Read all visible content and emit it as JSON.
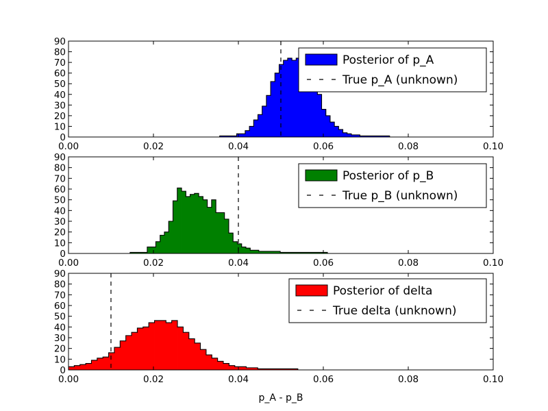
{
  "chart_data": [
    {
      "type": "histogram",
      "xlim": [
        0.0,
        0.1
      ],
      "ylim": [
        0,
        90
      ],
      "x_ticks": [
        "0.00",
        "0.02",
        "0.04",
        "0.06",
        "0.08",
        "0.10"
      ],
      "y_ticks": [
        "0",
        "10",
        "20",
        "30",
        "40",
        "50",
        "60",
        "70",
        "80",
        "90"
      ],
      "xlabel": "",
      "grid": false,
      "legend_position": "top-right",
      "series": [
        {
          "name": "Posterior of p_A",
          "color": "#0000ff",
          "bins_start": 0.0356,
          "bin_width": 0.001,
          "values": [
            1,
            1,
            1,
            1,
            3,
            3,
            6,
            10,
            16,
            21,
            29,
            39,
            52,
            60,
            68,
            72,
            74,
            72,
            74,
            66,
            63,
            59,
            51,
            40,
            26,
            20,
            14,
            10,
            7,
            4,
            3,
            2,
            2,
            1,
            1,
            1,
            1,
            1,
            1,
            1
          ]
        },
        {
          "name": "True p_A (unknown)",
          "style": "dashed",
          "x": 0.05
        }
      ]
    },
    {
      "type": "histogram",
      "xlim": [
        0.0,
        0.1
      ],
      "ylim": [
        0,
        90
      ],
      "x_ticks": [
        "0.00",
        "0.02",
        "0.04",
        "0.06",
        "0.08",
        "0.10"
      ],
      "y_ticks": [
        "0",
        "10",
        "20",
        "30",
        "40",
        "50",
        "60",
        "70",
        "80",
        "90"
      ],
      "xlabel": "",
      "grid": false,
      "legend_position": "top-right",
      "series": [
        {
          "name": "Posterior of p_B",
          "color": "#008000",
          "bins_start": 0.0145,
          "bin_width": 0.00101,
          "values": [
            1,
            1,
            1,
            1,
            6,
            6,
            11,
            17,
            20,
            30,
            49,
            61,
            58,
            53,
            55,
            56,
            53,
            50,
            43,
            50,
            38,
            38,
            32,
            19,
            11,
            9,
            6,
            5,
            3,
            3,
            2,
            2,
            2,
            2,
            2,
            1,
            1,
            1,
            1,
            1,
            1,
            1,
            1,
            1,
            1,
            1
          ]
        },
        {
          "name": "True p_B (unknown)",
          "style": "dashed",
          "x": 0.04
        }
      ]
    },
    {
      "type": "histogram",
      "xlim": [
        0.0,
        0.1
      ],
      "ylim": [
        0,
        90
      ],
      "x_ticks": [
        "0.00",
        "0.02",
        "0.04",
        "0.06",
        "0.08",
        "0.10"
      ],
      "y_ticks": [
        "0",
        "10",
        "20",
        "30",
        "40",
        "50",
        "60",
        "70",
        "80",
        "90"
      ],
      "xlabel": "p_A - p_B",
      "grid": false,
      "legend_position": "top-right",
      "series": [
        {
          "name": "Posterior of delta",
          "color": "#ff0000",
          "bins_start": 0.0,
          "bin_width": 0.00135,
          "values": [
            3,
            4,
            5,
            6,
            9,
            11,
            12,
            16,
            21,
            27,
            32,
            35,
            39,
            40,
            44,
            46,
            46,
            44,
            46,
            40,
            35,
            29,
            25,
            19,
            14,
            11,
            8,
            6,
            4,
            3,
            3,
            2,
            2,
            1,
            1,
            1,
            1,
            1,
            1,
            1
          ]
        },
        {
          "name": "True delta (unknown)",
          "style": "dashed",
          "x": 0.01
        }
      ]
    }
  ]
}
